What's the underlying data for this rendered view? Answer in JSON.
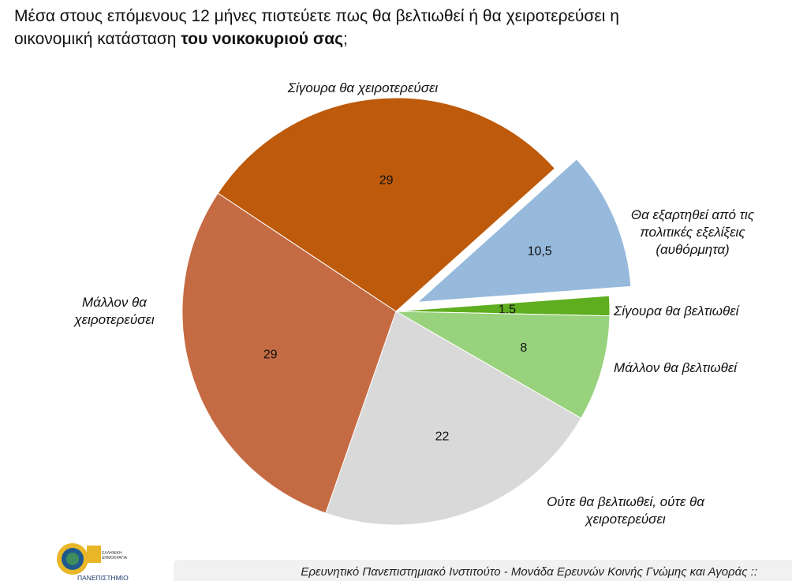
{
  "title": {
    "line1": "Μέσα στους επόμενους 12 μήνες πιστεύετε πως θα βελτιωθεί ή θα χειροτερεύσει η",
    "line2_plain": "οικονομική κατάσταση ",
    "line2_bold": "του νοικοκυριού σας",
    "line2_end": ";"
  },
  "chart_data": {
    "type": "pie",
    "start_angle_deg": 48,
    "direction": "clockwise",
    "exploded": "Θα εξαρτηθεί από τις πολιτικές εξελίξεις (αυθόρμητα)",
    "slices": [
      {
        "label": "Θα εξαρτηθεί από τις πολιτικές εξελίξεις (αυθόρμητα)",
        "label_lines": [
          "Θα εξαρτηθεί από τις",
          "πολιτικές εξελίξεις",
          "(αυθόρμητα)"
        ],
        "value": 10.5,
        "value_text": "10,5",
        "color": "#96b9dc"
      },
      {
        "label": "Σίγουρα θα βελτιωθεί",
        "label_lines": [
          "Σίγουρα θα βελτιωθεί"
        ],
        "value": 1.5,
        "value_text": "1,5",
        "color": "#5fae20"
      },
      {
        "label": "Μάλλον θα βελτιωθεί",
        "label_lines": [
          "Μάλλον θα βελτιωθεί"
        ],
        "value": 8,
        "value_text": "8",
        "color": "#98d27c"
      },
      {
        "label": "Ούτε θα βελτιωθεί, ούτε θα χειροτερεύσει",
        "label_lines": [
          "Ούτε θα βελτιωθεί, ούτε θα",
          "χειροτερεύσει"
        ],
        "value": 22,
        "value_text": "22",
        "color": "#d9d9d9"
      },
      {
        "label": "Μάλλον θα χειροτερεύσει",
        "label_lines": [
          "Μάλλον θα",
          "χειροτερεύσει"
        ],
        "value": 29,
        "value_text": "29",
        "color": "#c56b43"
      },
      {
        "label": "Σίγουρα θα χειροτερεύσει",
        "label_lines": [
          "Σίγουρα θα χειροτερεύσει"
        ],
        "value": 29,
        "value_text": "29",
        "color": "#bd5a0b"
      }
    ]
  },
  "logo": {
    "text_1": "ΕΛΛΗΝΙΚΗ",
    "text_2": "ΔΗΜΟΚΡΑΤΙΑ",
    "text_3": "ΠΑΝΕΠΙΣΤΗΜΙΟ"
  },
  "footer": {
    "text": "Ερευνητικό Πανεπιστημιακό Ινστιτούτο - Μονάδα Ερευνών Κοινής Γνώμης και Αγοράς ::"
  }
}
